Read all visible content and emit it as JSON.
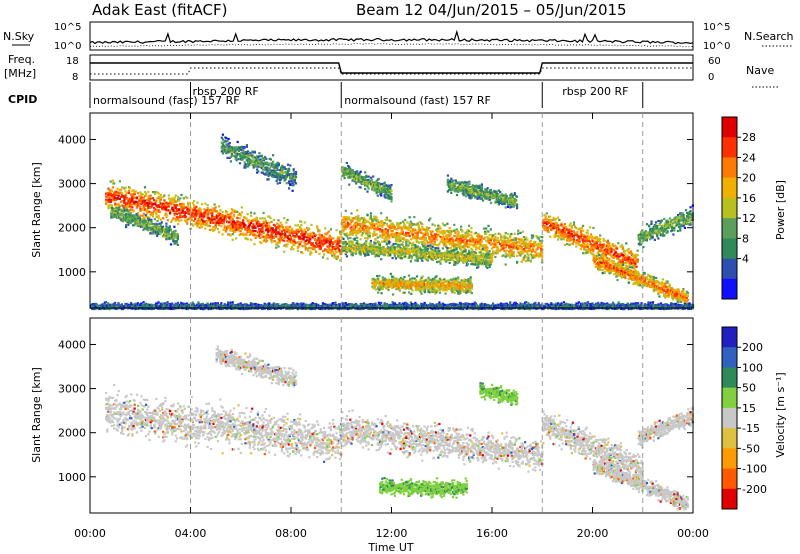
{
  "header": {
    "radar_title": "Adak East (fitACF)",
    "beam_info": "Beam 12  04/Jun/2015 – 05/Jun/2015"
  },
  "top_panels": {
    "nsky_label": "N.Sky",
    "nsky_ticks": [
      "10^5",
      "10^0"
    ],
    "nsearch_label": "N.Search",
    "nsearch_ticks": [
      "10^5",
      "10^0"
    ],
    "freq_label_line1": "Freq.",
    "freq_label_line2": "[MHz]",
    "freq_ticks": [
      "18",
      "8"
    ],
    "nave_label": "Nave",
    "nave_ticks": [
      "60",
      "0"
    ],
    "cpid_label": "CPID",
    "cpid_segments": [
      {
        "label": "normalsound (fast) 157 RF",
        "start_h": 0.0,
        "end_h": 10.0
      },
      {
        "label": "rbsp 200 RF",
        "start_h": 4.0,
        "end_h": 10.0
      },
      {
        "label": "normalsound (fast) 157 RF",
        "start_h": 10.0,
        "end_h": 18.0
      },
      {
        "label": "rbsp 200 RF",
        "start_h": 18.0,
        "end_h": 22.0
      }
    ]
  },
  "colors": {
    "power_scale": [
      "#1010ff",
      "#2f4fb0",
      "#2e8b57",
      "#5aa05a",
      "#b8c020",
      "#f0b000",
      "#ff7a00",
      "#ff3000",
      "#e00000"
    ],
    "velocity_scale": [
      "#e00000",
      "#ff5a00",
      "#ff9a00",
      "#e0c040",
      "#c8c8c8",
      "#80d040",
      "#2e8b57",
      "#3060c0",
      "#2020c0"
    ]
  },
  "chart_data": [
    {
      "type": "heatmap",
      "panel": "power",
      "ylabel": "Slant Range [km]",
      "colorbar_label": "Power [dB]",
      "colorbar_ticks": [
        "28",
        "24",
        "20",
        "16",
        "12",
        "8",
        "4"
      ],
      "ylim": [
        180,
        4600
      ],
      "yticks": [
        "4000",
        "3000",
        "2000",
        "1000"
      ],
      "xlim_hours": [
        0,
        24
      ],
      "scatter_bands": [
        {
          "t0": 0.6,
          "t1": 10.0,
          "r0": 2750,
          "r1": 1600,
          "width": 450,
          "level": 0.75
        },
        {
          "t0": 0.8,
          "t1": 3.5,
          "r0": 2400,
          "r1": 1800,
          "width": 250,
          "level": 0.35
        },
        {
          "t0": 10.0,
          "t1": 18.0,
          "r0": 2100,
          "r1": 1500,
          "width": 450,
          "level": 0.6
        },
        {
          "t0": 10.0,
          "t1": 16.0,
          "r0": 1600,
          "r1": 1300,
          "width": 250,
          "level": 0.45
        },
        {
          "t0": 11.2,
          "t1": 15.2,
          "r0": 750,
          "r1": 700,
          "width": 250,
          "level": 0.55
        },
        {
          "t0": 18.0,
          "t1": 21.8,
          "r0": 2150,
          "r1": 1200,
          "width": 400,
          "level": 0.7
        },
        {
          "t0": 20.0,
          "t1": 23.8,
          "r0": 1300,
          "r1": 400,
          "width": 250,
          "level": 0.65
        },
        {
          "t0": 21.8,
          "t1": 24.0,
          "r0": 1800,
          "r1": 2300,
          "width": 300,
          "level": 0.35
        },
        {
          "t0": 5.2,
          "t1": 8.2,
          "r0": 3900,
          "r1": 3100,
          "width": 350,
          "level": 0.3
        },
        {
          "t0": 10.0,
          "t1": 12.0,
          "r0": 3300,
          "r1": 2800,
          "width": 250,
          "level": 0.35
        },
        {
          "t0": 14.2,
          "t1": 17.0,
          "r0": 3000,
          "r1": 2600,
          "width": 250,
          "level": 0.35
        },
        {
          "t0": 0.0,
          "t1": 24.0,
          "r0": 230,
          "r1": 230,
          "width": 120,
          "level": 0.2
        }
      ]
    },
    {
      "type": "heatmap",
      "panel": "velocity",
      "ylabel": "Slant Range [km]",
      "colorbar_label": "Velocity [m s⁻¹]",
      "colorbar_ticks": [
        "200",
        "100",
        "50",
        "15",
        "-15",
        "-50",
        "-100",
        "-200"
      ],
      "ylim": [
        180,
        4600
      ],
      "yticks": [
        "4000",
        "3000",
        "2000",
        "1000"
      ],
      "xlim_hours": [
        0,
        24
      ],
      "xticks": [
        "00:00",
        "04:00",
        "08:00",
        "12:00",
        "16:00",
        "20:00",
        "00:00"
      ],
      "xlabel": "Time UT",
      "scatter_bands": [
        {
          "t0": 0.6,
          "t1": 10.0,
          "r0": 2500,
          "r1": 1800,
          "width": 650,
          "level": "low"
        },
        {
          "t0": 10.0,
          "t1": 18.0,
          "r0": 2100,
          "r1": 1500,
          "width": 500,
          "level": "low"
        },
        {
          "t0": 11.5,
          "t1": 15.0,
          "r0": 800,
          "r1": 750,
          "width": 250,
          "level": "pos"
        },
        {
          "t0": 18.0,
          "t1": 22.0,
          "r0": 2200,
          "r1": 1200,
          "width": 450,
          "level": "low"
        },
        {
          "t0": 20.0,
          "t1": 23.8,
          "r0": 1300,
          "r1": 400,
          "width": 250,
          "level": "low"
        },
        {
          "t0": 21.8,
          "t1": 24.0,
          "r0": 1900,
          "r1": 2400,
          "width": 250,
          "level": "low"
        },
        {
          "t0": 5.0,
          "t1": 8.2,
          "r0": 3800,
          "r1": 3200,
          "width": 300,
          "level": "low"
        },
        {
          "t0": 15.5,
          "t1": 17.0,
          "r0": 3000,
          "r1": 2800,
          "width": 250,
          "level": "pos"
        }
      ]
    }
  ]
}
